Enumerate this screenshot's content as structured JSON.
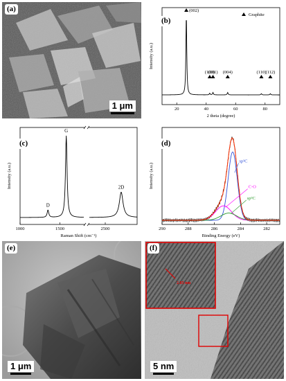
{
  "panels": {
    "a": {
      "label": "(a)",
      "scale_bar": "1 μm"
    },
    "b": {
      "label": "(b)"
    },
    "c": {
      "label": "(c)"
    },
    "d": {
      "label": "(d)"
    },
    "e": {
      "label": "(e)",
      "scale_bar": "1 μm"
    },
    "f": {
      "label": "(f)",
      "scale_bar": "5 nm",
      "inset_measure": "2.05 nm"
    }
  },
  "colors": {
    "xps_envelope": "#ff3000",
    "xps_sp2": "#3050d8",
    "xps_co": "#ff00ff",
    "xps_sp3": "#2a9a2a",
    "xps_raw": "#222222",
    "inset_frame": "#e00000"
  },
  "chart_data": [
    {
      "type": "line",
      "panel": "b",
      "xlabel": "2 theta (degree)",
      "ylabel": "Intensity (a.u.)",
      "legend": "Graphite",
      "legend_marker": "triangle",
      "xlim": [
        10,
        90
      ],
      "xticks": [
        20,
        40,
        60,
        80
      ],
      "peaks": [
        {
          "label": "(002)",
          "x": 26.5,
          "rel_height": 1.0
        },
        {
          "label": "(100)",
          "x": 42.4,
          "rel_height": 0.02
        },
        {
          "label": "(101)",
          "x": 44.6,
          "rel_height": 0.03
        },
        {
          "label": "(004)",
          "x": 54.6,
          "rel_height": 0.03
        },
        {
          "label": "(110)",
          "x": 77.5,
          "rel_height": 0.015
        },
        {
          "label": "(112)",
          "x": 83.6,
          "rel_height": 0.015
        }
      ]
    },
    {
      "type": "line",
      "panel": "c",
      "xlabel": "Raman Shift (cm⁻¹)",
      "ylabel": "Intensity (a.u.)",
      "xlim": [
        1000,
        2900
      ],
      "axis_break": [
        1800,
        2300
      ],
      "xticks": [
        1000,
        1500,
        2500
      ],
      "peaks": [
        {
          "label": "D",
          "x": 1350,
          "rel_height": 0.09
        },
        {
          "label": "G",
          "x": 1580,
          "rel_height": 1.0
        },
        {
          "label": "2D",
          "x": 2700,
          "rel_height": 0.31
        }
      ]
    },
    {
      "type": "line",
      "panel": "d",
      "xlabel": "Binding Energy (eV)",
      "ylabel": "Intensity (a.u.)",
      "xlim": [
        290,
        281
      ],
      "xticks": [
        290,
        288,
        286,
        284,
        282
      ],
      "series": [
        {
          "name": "sp²C",
          "center": 284.6,
          "rel_height": 0.85
        },
        {
          "name": "C-O",
          "center": 285.3,
          "rel_height": 0.18
        },
        {
          "name": "sp³C",
          "center": 284.9,
          "rel_height": 0.09
        }
      ]
    }
  ]
}
